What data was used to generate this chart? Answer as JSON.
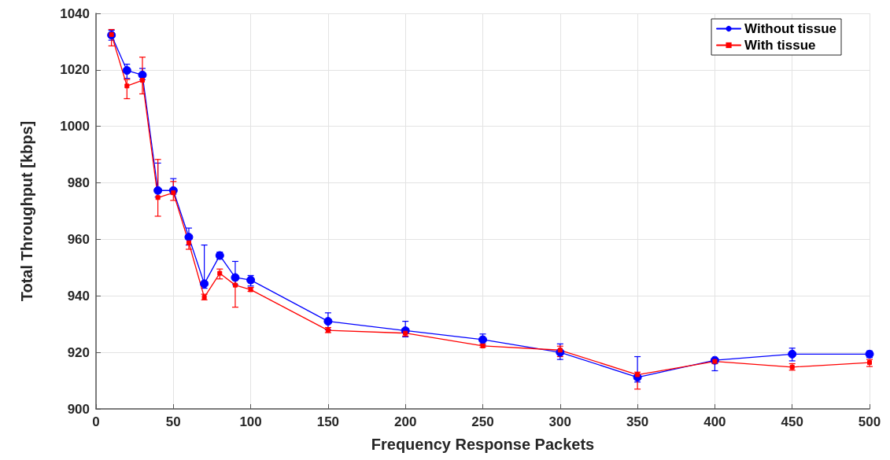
{
  "chart_data": {
    "type": "line",
    "xlabel": "Frequency Response Packets",
    "ylabel": "Total Throughput [kbps]",
    "x": [
      10,
      20,
      30,
      40,
      50,
      60,
      70,
      80,
      90,
      100,
      150,
      200,
      250,
      300,
      350,
      400,
      450,
      500
    ],
    "series": [
      {
        "name": "Without tissue",
        "color": "#0000ff",
        "marker": "circle",
        "values": [
          1032.3,
          1019.8,
          1018.2,
          977.3,
          977.3,
          960.8,
          944.3,
          954.3,
          946.5,
          945.6,
          931,
          927.7,
          924.5,
          920,
          911.2,
          917.2,
          919.4,
          919.4
        ],
        "errors": [
          [
            1030.5,
            1034
          ],
          [
            1017,
            1022
          ],
          [
            1016.5,
            1020.5
          ],
          [
            975,
            987
          ],
          [
            976,
            981.5
          ],
          [
            958,
            964
          ],
          [
            942.7,
            958
          ],
          [
            953,
            955.5
          ],
          [
            944,
            952.2
          ],
          [
            943.5,
            947.2
          ],
          [
            928,
            934
          ],
          [
            925.5,
            931
          ],
          [
            922.5,
            926.5
          ],
          [
            917.5,
            923
          ],
          [
            909.5,
            918.5
          ],
          [
            913.5,
            917.8
          ],
          [
            917,
            921.5
          ],
          [
            918.2,
            920.5
          ]
        ]
      },
      {
        "name": "With tissue",
        "color": "#ff0000",
        "marker": "square",
        "values": [
          1032.5,
          1014.3,
          1016.3,
          974.8,
          976.5,
          958.8,
          939.5,
          948,
          943.8,
          942.2,
          927.8,
          926.8,
          922.3,
          920.8,
          912.1,
          916.8,
          914.8,
          916.4
        ],
        "errors": [
          [
            1028.5,
            1034.3
          ],
          [
            1009.8,
            1016.6
          ],
          [
            1011.5,
            1024.5
          ],
          [
            968.2,
            988.3
          ],
          [
            973.8,
            980.5
          ],
          [
            956.5,
            960
          ],
          [
            938.6,
            940.6
          ],
          [
            946,
            949.5
          ],
          [
            936,
            945.5
          ],
          [
            941.6,
            943
          ],
          [
            927,
            928.8
          ],
          [
            925.8,
            927.8
          ],
          [
            921.8,
            923
          ],
          [
            918.5,
            922.2
          ],
          [
            907,
            913
          ],
          [
            916,
            917.5
          ],
          [
            913.7,
            916
          ],
          [
            915,
            917.5
          ]
        ]
      }
    ],
    "xlim": [
      0,
      500
    ],
    "xticks": [
      0,
      50,
      100,
      150,
      200,
      250,
      300,
      350,
      400,
      450,
      500
    ],
    "ylim": [
      900,
      1040
    ],
    "yticks": [
      900,
      920,
      940,
      960,
      980,
      1000,
      1020,
      1040
    ],
    "grid": true,
    "legend": "top right",
    "line_style": "solid"
  }
}
